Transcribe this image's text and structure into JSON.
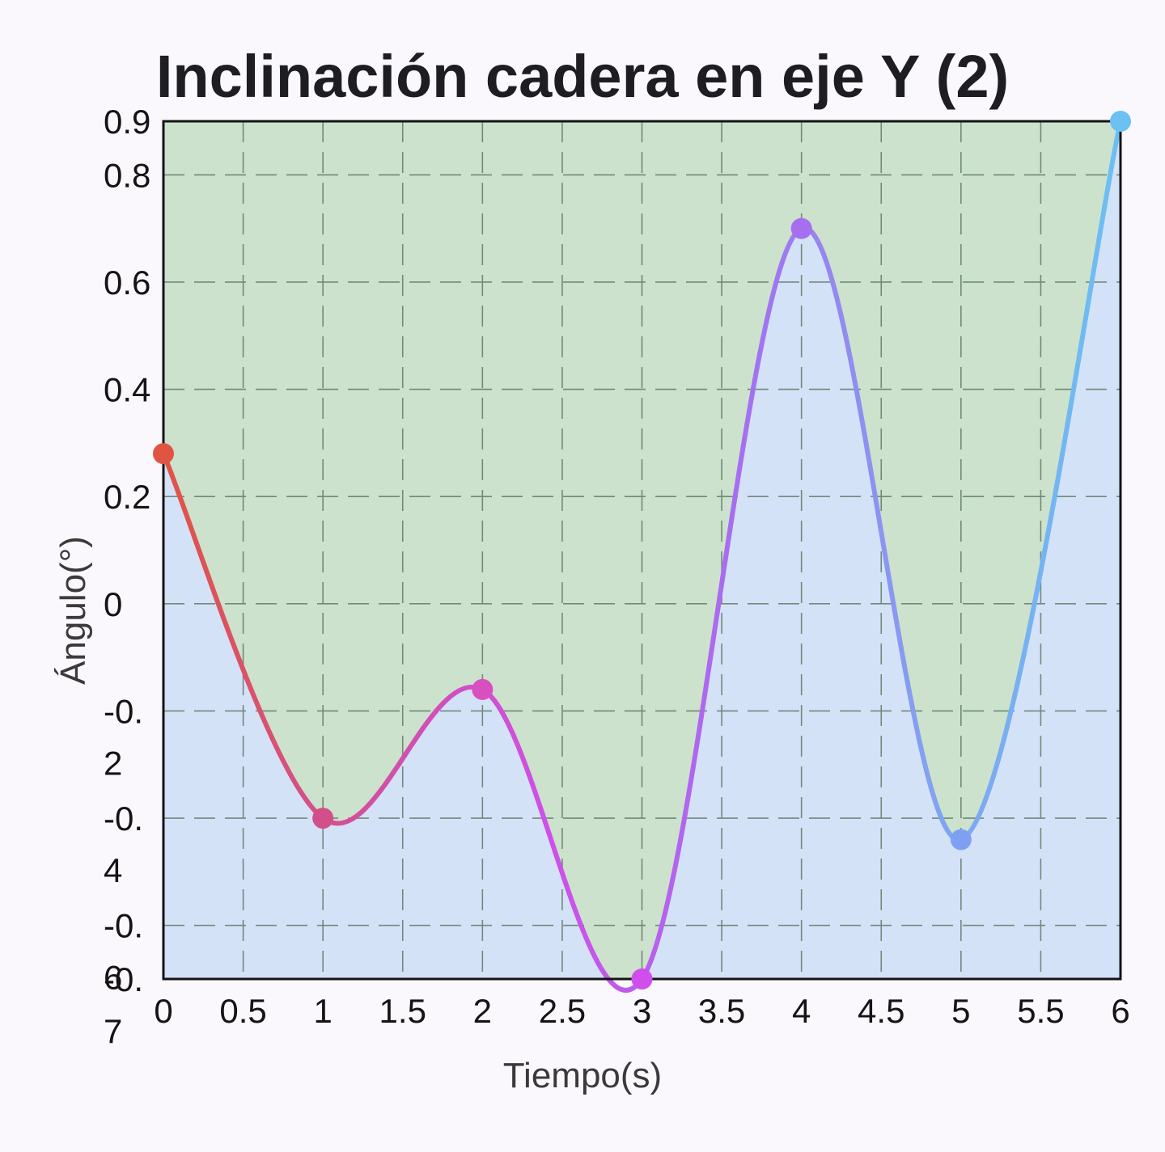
{
  "chart_data": {
    "type": "line",
    "title": "Inclinación cadera en eje Y (2)",
    "xlabel": "Tiempo(s)",
    "ylabel": "Ángulo(°)",
    "xlim": [
      0,
      6
    ],
    "ylim": [
      -0.7,
      0.9
    ],
    "x_ticks": [
      0,
      0.5,
      1,
      1.5,
      2,
      2.5,
      3,
      3.5,
      4,
      4.5,
      5,
      5.5,
      6
    ],
    "x_tick_labels": [
      "0",
      "0.5",
      "1",
      "1.5",
      "2",
      "2.5",
      "3",
      "3.5",
      "4",
      "4.5",
      "5",
      "5.5",
      "6"
    ],
    "y_ticks": [
      0.9,
      0.8,
      0.6,
      0.4,
      0.2,
      0,
      -0.2,
      -0.4,
      -0.6,
      -0.7
    ],
    "y_tick_labels": [
      [
        "0.9"
      ],
      [
        "0.8"
      ],
      [
        "0.6"
      ],
      [
        "0.4"
      ],
      [
        "0.2"
      ],
      [
        "0"
      ],
      [
        "-0.",
        "2"
      ],
      [
        "-0.",
        "4"
      ],
      [
        "-0.",
        "6"
      ],
      [
        "-0.",
        "7"
      ]
    ],
    "grid": true,
    "fill_above_color": "#cde2cc",
    "fill_below_color": "#d4e2f8",
    "grid_color": "#6f8a7a",
    "line_gradient": [
      "#e05444",
      "#d24f9a",
      "#cf4fe8",
      "#a66ef0",
      "#82a2f2",
      "#6cc0f2"
    ],
    "series": [
      {
        "x": [
          0,
          1,
          2,
          3,
          4,
          5,
          6
        ],
        "y": [
          0.28,
          -0.4,
          -0.16,
          -0.7,
          0.7,
          -0.44,
          0.9
        ],
        "point_colors": [
          "#e05444",
          "#d24f8a",
          "#d94fc0",
          "#d04fec",
          "#a56ff0",
          "#7fa0f2",
          "#6cc0f2"
        ]
      }
    ]
  }
}
